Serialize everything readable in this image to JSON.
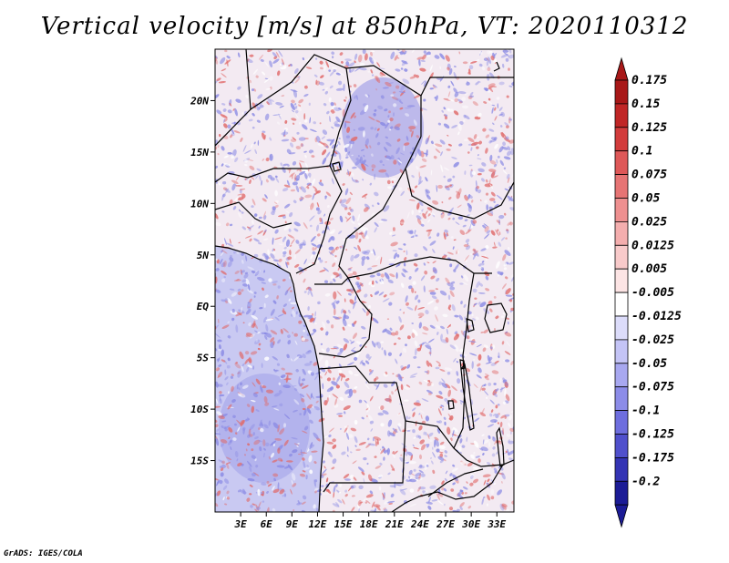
{
  "title": "Vertical velocity [m/s] at 850hPa, VT: 2020110312",
  "credit": "GrADS: IGES/COLA",
  "map": {
    "lon_range": [
      0,
      35
    ],
    "lat_range": [
      -20,
      25
    ],
    "lat_ticks": [
      {
        "value": 20,
        "label": "20N"
      },
      {
        "value": 15,
        "label": "15N"
      },
      {
        "value": 10,
        "label": "10N"
      },
      {
        "value": 5,
        "label": "5N"
      },
      {
        "value": 0,
        "label": "EQ"
      },
      {
        "value": -5,
        "label": "5S"
      },
      {
        "value": -10,
        "label": "10S"
      },
      {
        "value": -15,
        "label": "15S"
      }
    ],
    "lon_ticks": [
      {
        "value": 3,
        "label": "3E"
      },
      {
        "value": 6,
        "label": "6E"
      },
      {
        "value": 9,
        "label": "9E"
      },
      {
        "value": 12,
        "label": "12E"
      },
      {
        "value": 15,
        "label": "15E"
      },
      {
        "value": 18,
        "label": "18E"
      },
      {
        "value": 21,
        "label": "21E"
      },
      {
        "value": 24,
        "label": "24E"
      },
      {
        "value": 27,
        "label": "27E"
      },
      {
        "value": 30,
        "label": "30E"
      },
      {
        "value": 33,
        "label": "33E"
      }
    ]
  },
  "colorbar": {
    "levels": [
      {
        "label": "0.175",
        "color": "#a81818"
      },
      {
        "label": "0.15",
        "color": "#c02626"
      },
      {
        "label": "0.125",
        "color": "#d23c3c"
      },
      {
        "label": "0.1",
        "color": "#de5858"
      },
      {
        "label": "0.075",
        "color": "#e67474"
      },
      {
        "label": "0.05",
        "color": "#ee9090"
      },
      {
        "label": "0.025",
        "color": "#f4aeae"
      },
      {
        "label": "0.0125",
        "color": "#f8caca"
      },
      {
        "label": "0.005",
        "color": "#fce4e4"
      },
      {
        "label": "-0.005",
        "color": "#ffffff"
      },
      {
        "label": "-0.0125",
        "color": "#dcdcfa"
      },
      {
        "label": "-0.025",
        "color": "#c4c4f6"
      },
      {
        "label": "-0.05",
        "color": "#a8a8f0"
      },
      {
        "label": "-0.075",
        "color": "#8c8ce8"
      },
      {
        "label": "-0.1",
        "color": "#6e6ede"
      },
      {
        "label": "-0.125",
        "color": "#5050cc"
      },
      {
        "label": "-0.175",
        "color": "#3434b4"
      },
      {
        "label": "-0.2",
        "color": "#1c1c96"
      }
    ],
    "top_triangle_color": "#a81818",
    "bottom_triangle_color": "#1c1c96",
    "extra_segment_color": "#1e1e9e"
  },
  "colors": {
    "ocean_base": "#c9c9f2",
    "land_base": "#f3eaf2",
    "sahara_blue": "#8f8fe6",
    "red": "#e06a6a",
    "blue": "#8a8ae4",
    "pale_white": "#ffffff",
    "border": "#000000"
  }
}
